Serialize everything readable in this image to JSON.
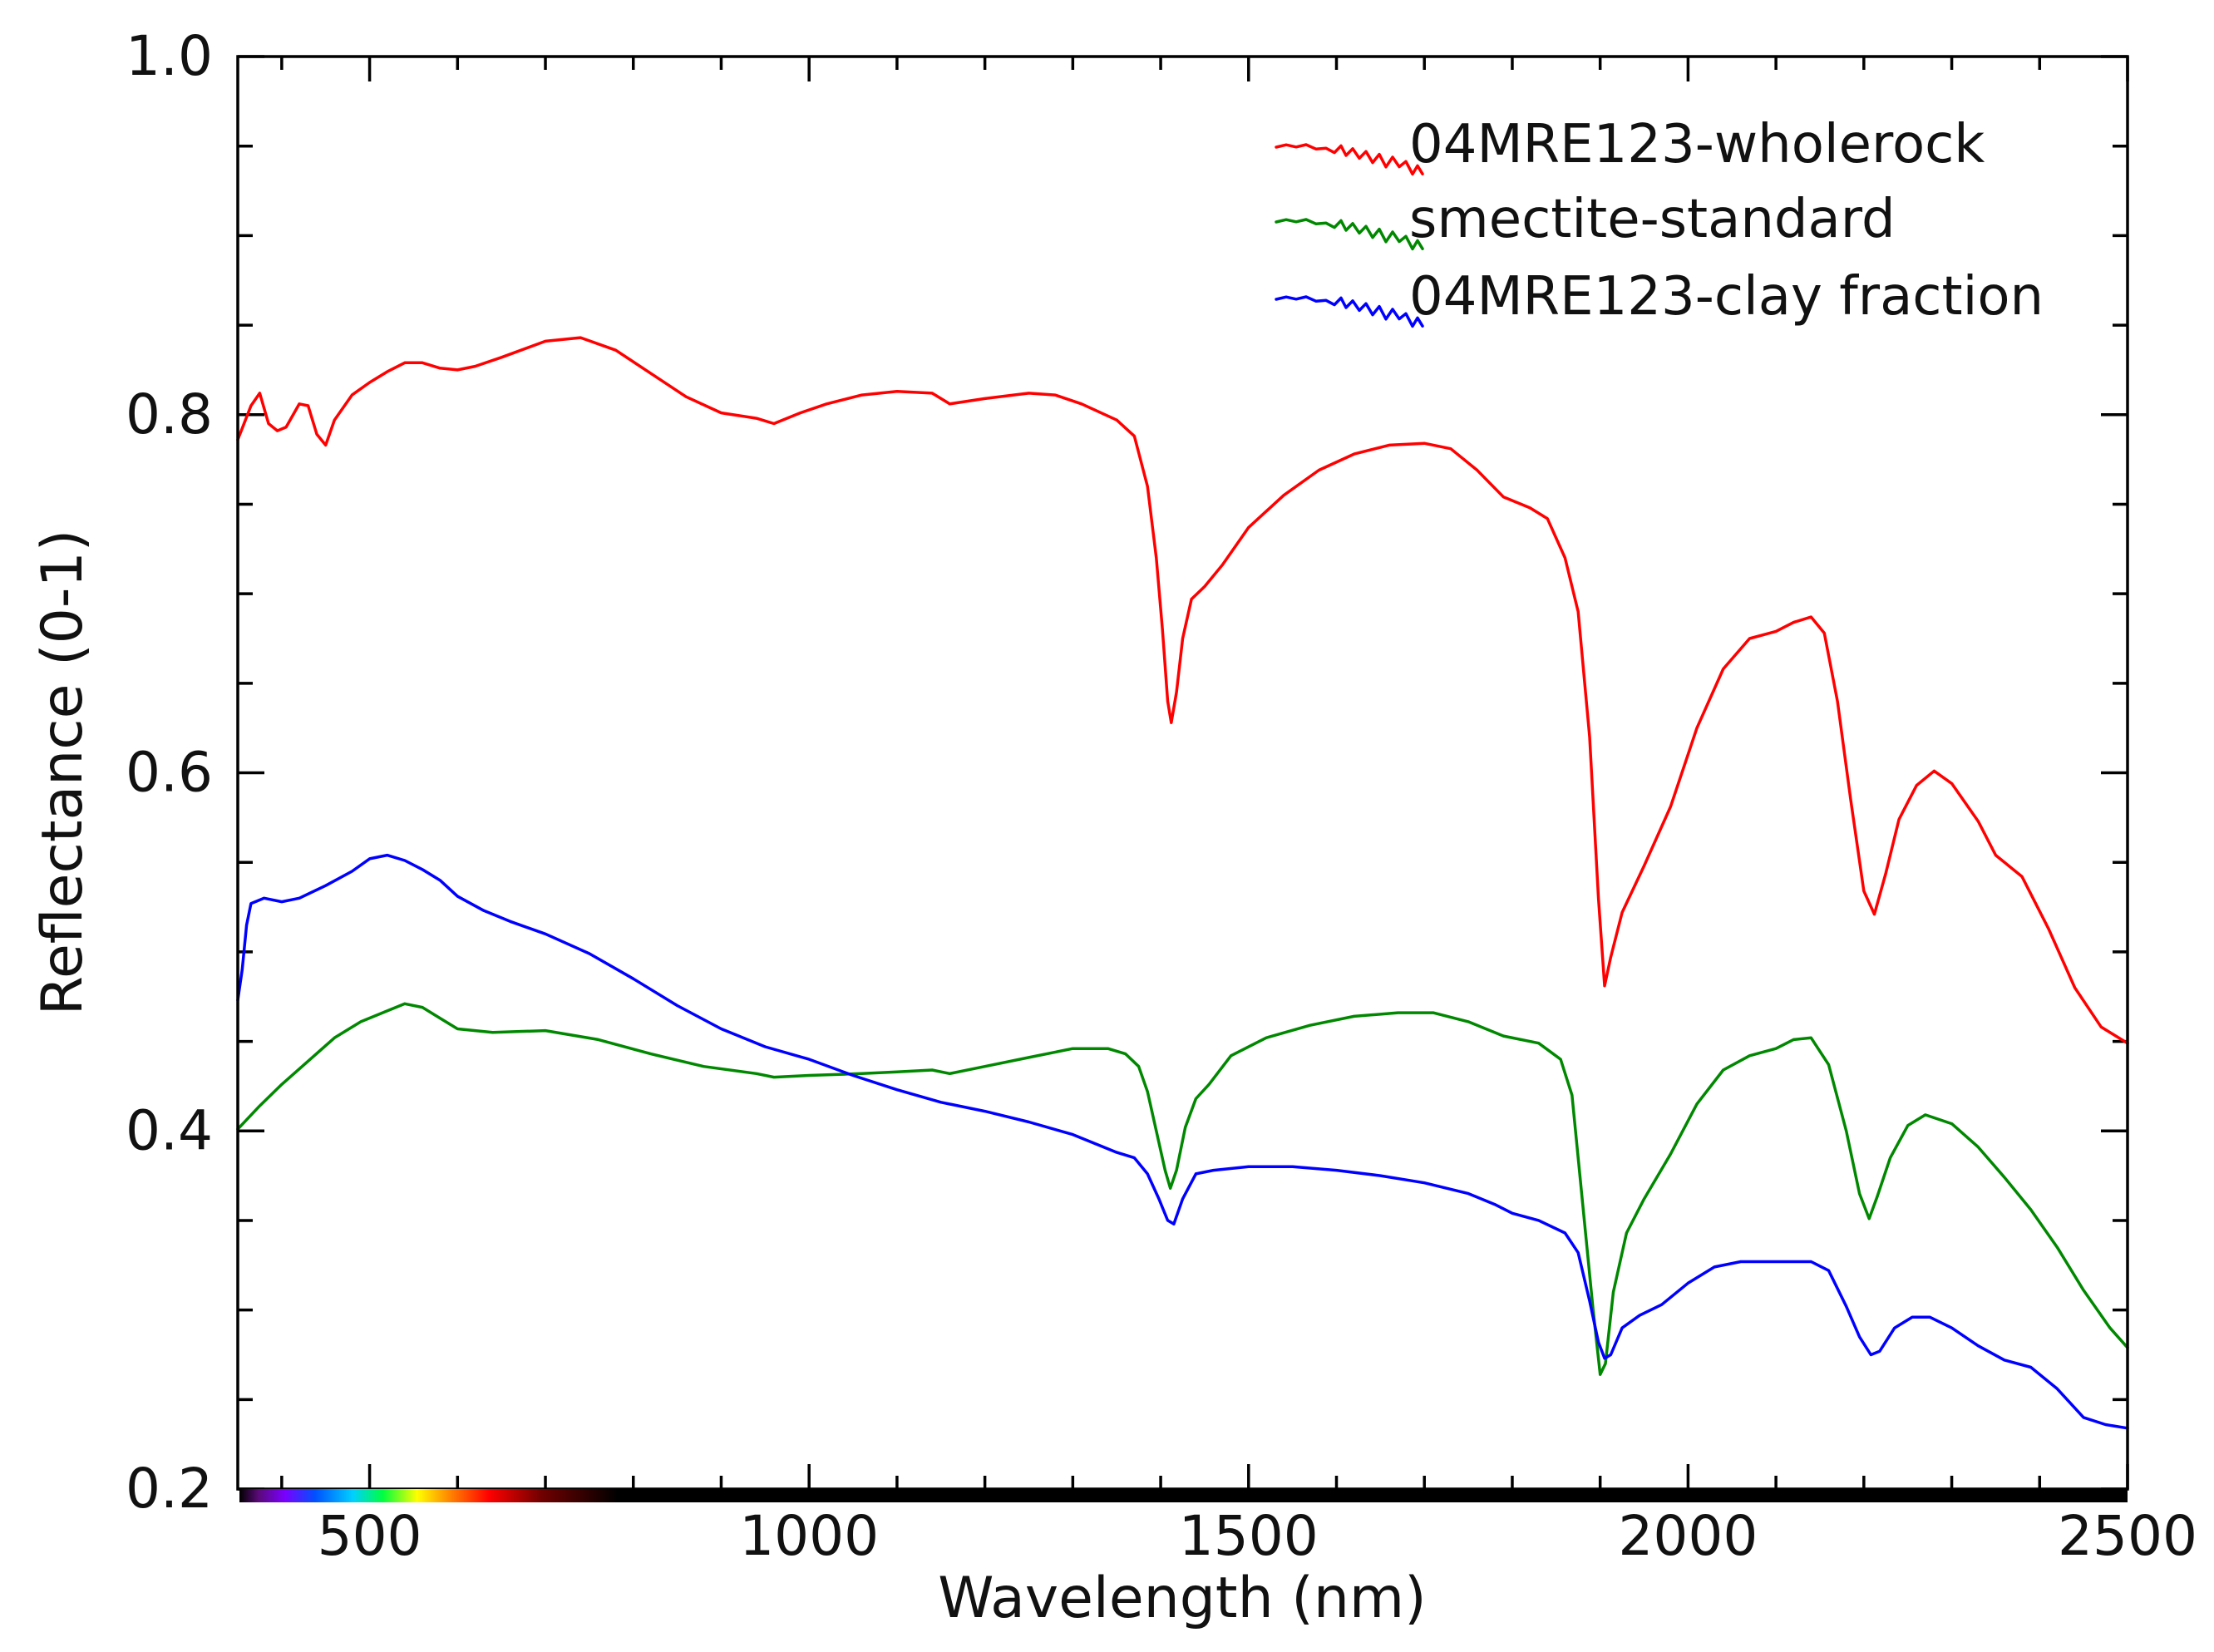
{
  "chart_data": {
    "type": "line",
    "title": "",
    "xlabel": "Wavelength (nm)",
    "ylabel": "Reflectance (0-1)",
    "xlim": [
      350,
      2500
    ],
    "ylim": [
      0.2,
      1.0
    ],
    "x_major_ticks": [
      500,
      1000,
      1500,
      2000,
      2500
    ],
    "x_tick_labels": [
      "500",
      "1000",
      "1500",
      "2000",
      "2500"
    ],
    "x_minor_step": 100,
    "y_major_ticks": [
      0.2,
      0.4,
      0.6,
      0.8,
      1.0
    ],
    "y_tick_labels": [
      "0.2",
      "0.4",
      "0.6",
      "0.8",
      "1.0"
    ],
    "y_minor_step": 0.05,
    "grid": false,
    "legend_position": "top-right",
    "visible_spectrum_bar": true,
    "series": [
      {
        "name": "04MRE123-wholerock",
        "color": "#ff0000",
        "points": [
          [
            350,
            0.786
          ],
          [
            365,
            0.805
          ],
          [
            375,
            0.812
          ],
          [
            385,
            0.795
          ],
          [
            395,
            0.791
          ],
          [
            405,
            0.793
          ],
          [
            420,
            0.806
          ],
          [
            430,
            0.805
          ],
          [
            440,
            0.789
          ],
          [
            450,
            0.783
          ],
          [
            460,
            0.797
          ],
          [
            480,
            0.811
          ],
          [
            500,
            0.818
          ],
          [
            520,
            0.824
          ],
          [
            540,
            0.829
          ],
          [
            560,
            0.829
          ],
          [
            580,
            0.826
          ],
          [
            600,
            0.825
          ],
          [
            620,
            0.827
          ],
          [
            650,
            0.832
          ],
          [
            700,
            0.841
          ],
          [
            740,
            0.843
          ],
          [
            780,
            0.836
          ],
          [
            820,
            0.823
          ],
          [
            860,
            0.81
          ],
          [
            900,
            0.801
          ],
          [
            940,
            0.798
          ],
          [
            960,
            0.795
          ],
          [
            990,
            0.801
          ],
          [
            1020,
            0.806
          ],
          [
            1060,
            0.811
          ],
          [
            1100,
            0.813
          ],
          [
            1140,
            0.812
          ],
          [
            1160,
            0.806
          ],
          [
            1200,
            0.809
          ],
          [
            1250,
            0.812
          ],
          [
            1280,
            0.811
          ],
          [
            1310,
            0.806
          ],
          [
            1350,
            0.797
          ],
          [
            1370,
            0.788
          ],
          [
            1385,
            0.76
          ],
          [
            1395,
            0.72
          ],
          [
            1402,
            0.68
          ],
          [
            1408,
            0.64
          ],
          [
            1412,
            0.628
          ],
          [
            1418,
            0.645
          ],
          [
            1425,
            0.675
          ],
          [
            1435,
            0.697
          ],
          [
            1450,
            0.704
          ],
          [
            1470,
            0.716
          ],
          [
            1500,
            0.737
          ],
          [
            1540,
            0.755
          ],
          [
            1580,
            0.769
          ],
          [
            1620,
            0.778
          ],
          [
            1660,
            0.783
          ],
          [
            1700,
            0.784
          ],
          [
            1730,
            0.781
          ],
          [
            1760,
            0.769
          ],
          [
            1790,
            0.754
          ],
          [
            1820,
            0.748
          ],
          [
            1840,
            0.742
          ],
          [
            1860,
            0.72
          ],
          [
            1875,
            0.69
          ],
          [
            1888,
            0.62
          ],
          [
            1898,
            0.53
          ],
          [
            1905,
            0.481
          ],
          [
            1912,
            0.497
          ],
          [
            1925,
            0.522
          ],
          [
            1950,
            0.548
          ],
          [
            1980,
            0.581
          ],
          [
            2010,
            0.625
          ],
          [
            2040,
            0.658
          ],
          [
            2070,
            0.675
          ],
          [
            2100,
            0.679
          ],
          [
            2120,
            0.684
          ],
          [
            2140,
            0.687
          ],
          [
            2155,
            0.678
          ],
          [
            2170,
            0.64
          ],
          [
            2185,
            0.585
          ],
          [
            2200,
            0.534
          ],
          [
            2212,
            0.521
          ],
          [
            2225,
            0.544
          ],
          [
            2240,
            0.574
          ],
          [
            2260,
            0.593
          ],
          [
            2280,
            0.601
          ],
          [
            2300,
            0.594
          ],
          [
            2330,
            0.573
          ],
          [
            2350,
            0.554
          ],
          [
            2380,
            0.542
          ],
          [
            2410,
            0.513
          ],
          [
            2440,
            0.48
          ],
          [
            2470,
            0.458
          ],
          [
            2500,
            0.449
          ]
        ]
      },
      {
        "name": "smectite-standard",
        "color": "#008800",
        "points": [
          [
            350,
            0.401
          ],
          [
            375,
            0.414
          ],
          [
            400,
            0.426
          ],
          [
            430,
            0.439
          ],
          [
            460,
            0.452
          ],
          [
            490,
            0.461
          ],
          [
            520,
            0.467
          ],
          [
            540,
            0.471
          ],
          [
            560,
            0.469
          ],
          [
            580,
            0.463
          ],
          [
            600,
            0.457
          ],
          [
            640,
            0.455
          ],
          [
            700,
            0.456
          ],
          [
            760,
            0.451
          ],
          [
            820,
            0.443
          ],
          [
            880,
            0.436
          ],
          [
            940,
            0.432
          ],
          [
            960,
            0.43
          ],
          [
            1000,
            0.431
          ],
          [
            1060,
            0.432
          ],
          [
            1100,
            0.433
          ],
          [
            1140,
            0.434
          ],
          [
            1160,
            0.432
          ],
          [
            1200,
            0.436
          ],
          [
            1250,
            0.441
          ],
          [
            1300,
            0.446
          ],
          [
            1340,
            0.446
          ],
          [
            1360,
            0.443
          ],
          [
            1375,
            0.436
          ],
          [
            1385,
            0.422
          ],
          [
            1395,
            0.4
          ],
          [
            1405,
            0.378
          ],
          [
            1411,
            0.368
          ],
          [
            1418,
            0.378
          ],
          [
            1428,
            0.402
          ],
          [
            1440,
            0.418
          ],
          [
            1455,
            0.426
          ],
          [
            1480,
            0.442
          ],
          [
            1520,
            0.452
          ],
          [
            1570,
            0.459
          ],
          [
            1620,
            0.464
          ],
          [
            1670,
            0.466
          ],
          [
            1710,
            0.466
          ],
          [
            1750,
            0.461
          ],
          [
            1790,
            0.453
          ],
          [
            1830,
            0.449
          ],
          [
            1855,
            0.44
          ],
          [
            1868,
            0.42
          ],
          [
            1880,
            0.36
          ],
          [
            1892,
            0.3
          ],
          [
            1900,
            0.264
          ],
          [
            1906,
            0.27
          ],
          [
            1915,
            0.31
          ],
          [
            1930,
            0.343
          ],
          [
            1950,
            0.362
          ],
          [
            1980,
            0.387
          ],
          [
            2010,
            0.415
          ],
          [
            2040,
            0.434
          ],
          [
            2070,
            0.442
          ],
          [
            2100,
            0.446
          ],
          [
            2120,
            0.451
          ],
          [
            2140,
            0.452
          ],
          [
            2160,
            0.437
          ],
          [
            2180,
            0.4
          ],
          [
            2195,
            0.365
          ],
          [
            2206,
            0.351
          ],
          [
            2215,
            0.363
          ],
          [
            2230,
            0.385
          ],
          [
            2250,
            0.403
          ],
          [
            2270,
            0.409
          ],
          [
            2300,
            0.404
          ],
          [
            2330,
            0.391
          ],
          [
            2360,
            0.374
          ],
          [
            2390,
            0.356
          ],
          [
            2420,
            0.335
          ],
          [
            2450,
            0.311
          ],
          [
            2480,
            0.29
          ],
          [
            2500,
            0.279
          ]
        ]
      },
      {
        "name": "04MRE123-clay fraction",
        "color": "#0000ff",
        "points": [
          [
            350,
            0.473
          ],
          [
            355,
            0.49
          ],
          [
            360,
            0.515
          ],
          [
            365,
            0.527
          ],
          [
            380,
            0.53
          ],
          [
            400,
            0.528
          ],
          [
            420,
            0.53
          ],
          [
            450,
            0.537
          ],
          [
            480,
            0.545
          ],
          [
            500,
            0.552
          ],
          [
            520,
            0.554
          ],
          [
            540,
            0.551
          ],
          [
            560,
            0.546
          ],
          [
            580,
            0.54
          ],
          [
            600,
            0.531
          ],
          [
            630,
            0.523
          ],
          [
            660,
            0.517
          ],
          [
            700,
            0.51
          ],
          [
            750,
            0.499
          ],
          [
            800,
            0.485
          ],
          [
            850,
            0.47
          ],
          [
            900,
            0.457
          ],
          [
            950,
            0.447
          ],
          [
            1000,
            0.44
          ],
          [
            1050,
            0.431
          ],
          [
            1100,
            0.423
          ],
          [
            1150,
            0.416
          ],
          [
            1200,
            0.411
          ],
          [
            1250,
            0.405
          ],
          [
            1300,
            0.398
          ],
          [
            1350,
            0.388
          ],
          [
            1370,
            0.385
          ],
          [
            1385,
            0.376
          ],
          [
            1398,
            0.362
          ],
          [
            1408,
            0.35
          ],
          [
            1415,
            0.348
          ],
          [
            1425,
            0.362
          ],
          [
            1440,
            0.376
          ],
          [
            1460,
            0.378
          ],
          [
            1500,
            0.38
          ],
          [
            1550,
            0.38
          ],
          [
            1600,
            0.378
          ],
          [
            1650,
            0.375
          ],
          [
            1700,
            0.371
          ],
          [
            1750,
            0.365
          ],
          [
            1780,
            0.359
          ],
          [
            1800,
            0.354
          ],
          [
            1830,
            0.35
          ],
          [
            1860,
            0.343
          ],
          [
            1875,
            0.332
          ],
          [
            1888,
            0.305
          ],
          [
            1898,
            0.282
          ],
          [
            1905,
            0.273
          ],
          [
            1912,
            0.275
          ],
          [
            1925,
            0.29
          ],
          [
            1945,
            0.297
          ],
          [
            1970,
            0.303
          ],
          [
            2000,
            0.315
          ],
          [
            2030,
            0.324
          ],
          [
            2060,
            0.327
          ],
          [
            2100,
            0.327
          ],
          [
            2140,
            0.327
          ],
          [
            2160,
            0.322
          ],
          [
            2180,
            0.302
          ],
          [
            2195,
            0.285
          ],
          [
            2208,
            0.275
          ],
          [
            2218,
            0.277
          ],
          [
            2235,
            0.29
          ],
          [
            2255,
            0.296
          ],
          [
            2275,
            0.296
          ],
          [
            2300,
            0.29
          ],
          [
            2330,
            0.28
          ],
          [
            2360,
            0.272
          ],
          [
            2390,
            0.268
          ],
          [
            2420,
            0.256
          ],
          [
            2450,
            0.24
          ],
          [
            2475,
            0.236
          ],
          [
            2500,
            0.234
          ]
        ]
      }
    ]
  }
}
